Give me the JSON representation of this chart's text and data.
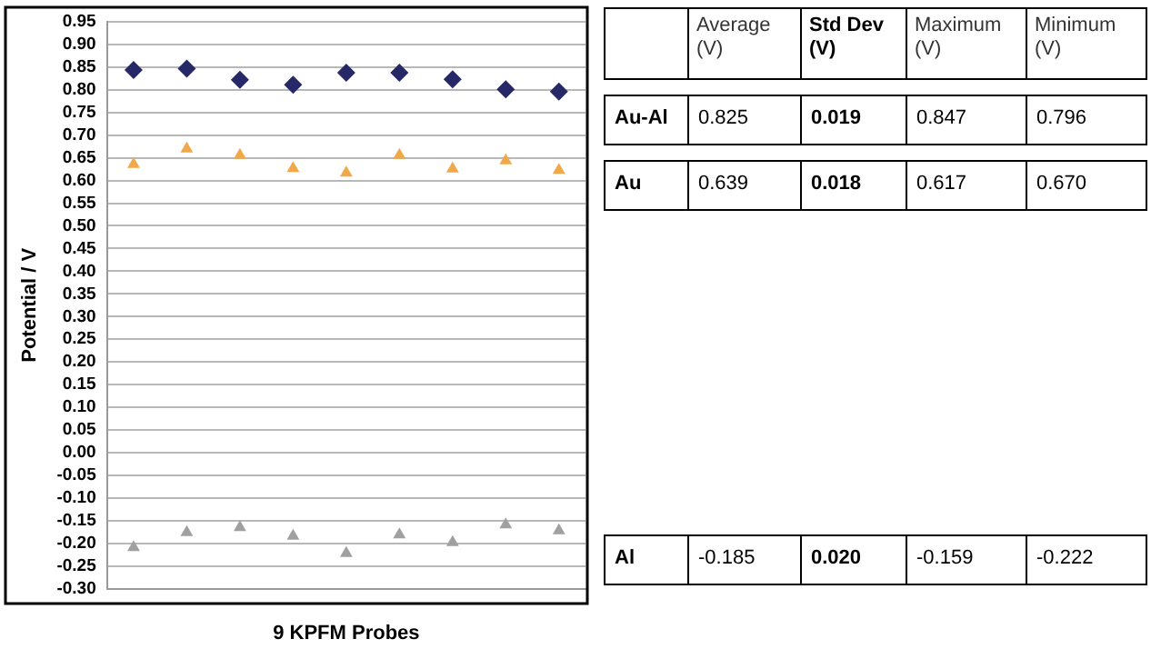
{
  "chart_data": [
    {
      "type": "scatter",
      "xlabel": "9 KPFM Probes",
      "ylabel": "Potential / V",
      "categories": [
        null,
        null,
        null,
        null,
        null,
        null,
        null,
        null,
        null
      ],
      "series": [
        {
          "color": "#262868",
          "marker": "diamond",
          "values": [
            0.844,
            0.847,
            0.822,
            0.811,
            0.838,
            0.838,
            0.823,
            0.801,
            0.796
          ]
        },
        {
          "color": "#f0a848",
          "marker": "triangle",
          "values": [
            0.636,
            0.67,
            0.656,
            0.627,
            0.617,
            0.656,
            0.626,
            0.644,
            0.623
          ]
        },
        {
          "color": "#a0a0a0",
          "marker": "triangle",
          "values": [
            -0.209,
            -0.176,
            -0.165,
            -0.184,
            -0.222,
            -0.181,
            -0.198,
            -0.159,
            -0.172
          ]
        }
      ],
      "ylim": [
        -0.3,
        0.95
      ],
      "yticks": [
        {
          "value": -0.3,
          "label": "-0.30"
        },
        {
          "value": -0.25,
          "label": "-0.25"
        },
        {
          "value": -0.2,
          "label": "-0.20"
        },
        {
          "value": -0.15,
          "label": "-0.15"
        },
        {
          "value": -0.1,
          "label": "-0.10"
        },
        {
          "value": -0.05,
          "label": "-0.05"
        },
        {
          "value": 0,
          "label": "0.00"
        },
        {
          "value": 0.05,
          "label": "0.05"
        },
        {
          "value": 0.1,
          "label": "0.10"
        },
        {
          "value": 0.15,
          "label": "0.15"
        },
        {
          "value": 0.2,
          "label": "0.20"
        },
        {
          "value": 0.25,
          "label": "0.25"
        },
        {
          "value": 0.3,
          "label": "0.30"
        },
        {
          "value": 0.35,
          "label": "0.35"
        },
        {
          "value": 0.4,
          "label": "0.40"
        },
        {
          "value": 0.45,
          "label": "0.45"
        },
        {
          "value": 0.5,
          "label": "0.50"
        },
        {
          "value": 0.55,
          "label": "0.55"
        },
        {
          "value": 0.6,
          "label": "0.60"
        },
        {
          "value": 0.65,
          "label": "0.65"
        },
        {
          "value": 0.7,
          "label": "0.70"
        },
        {
          "value": 0.75,
          "label": "0.75"
        },
        {
          "value": 0.8,
          "label": "0.80"
        },
        {
          "value": 0.85,
          "label": "0.85"
        },
        {
          "value": 0.9,
          "label": "0.90"
        },
        {
          "value": 0.95,
          "label": "0.95"
        }
      ],
      "grid": "y",
      "legend": false,
      "tick_labels": "y"
    },
    {
      "type": "other",
      "annotations": [
        "Average (V)",
        "Std Dev (V)",
        "Maximum (V)",
        "Minimum (V)",
        "Au-Al",
        "0.825",
        "0.019",
        "0.847",
        "0.796",
        "Au",
        "0.639",
        "0.018",
        "0.617",
        "0.670",
        "Al",
        "-0.185",
        "0.020",
        "-0.159",
        "-0.222"
      ]
    }
  ]
}
